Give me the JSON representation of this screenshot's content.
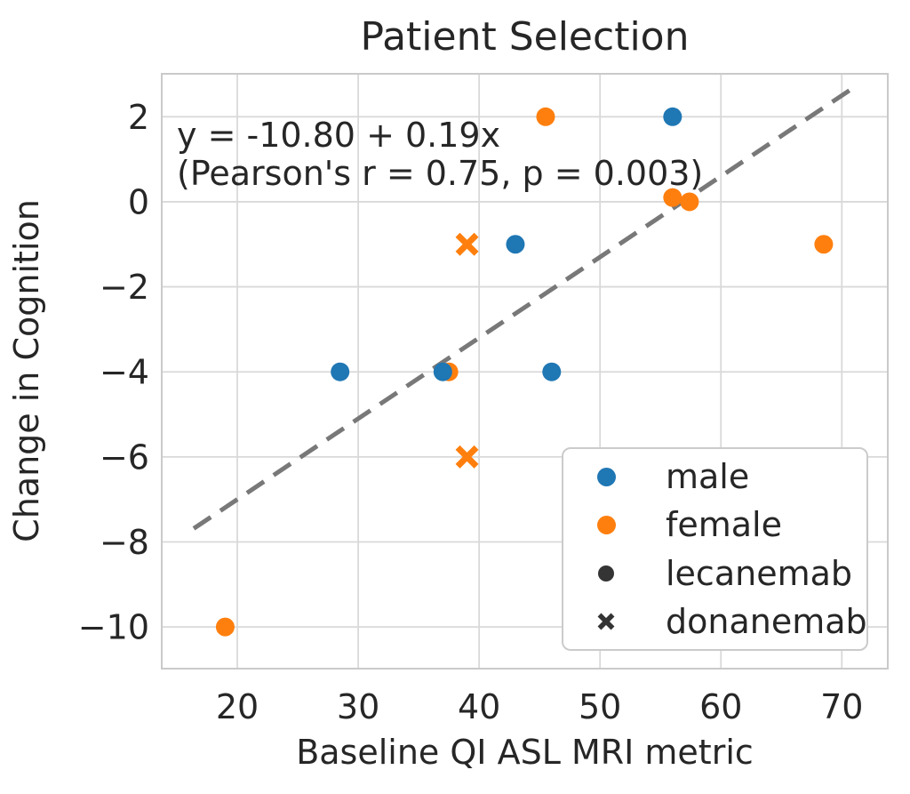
{
  "chart_data": {
    "type": "scatter",
    "title": "Patient Selection",
    "xlabel": "Baseline QI ASL MRI metric",
    "ylabel": "Change in Cognition",
    "xlim": [
      13.75,
      73.8
    ],
    "ylim": [
      -10.98,
      3.01
    ],
    "xticks": [
      20,
      30,
      40,
      50,
      60,
      70
    ],
    "xtick_labels": [
      "20",
      "30",
      "40",
      "50",
      "60",
      "70"
    ],
    "yticks": [
      2,
      0,
      -2,
      -4,
      -6,
      -8,
      -10
    ],
    "ytick_labels": [
      "2",
      "0",
      "−2",
      "−4",
      "−6",
      "−8",
      "−10"
    ],
    "grid": true,
    "annotation": {
      "line1": "y = -10.80 + 0.19x",
      "line2": "(Pearson's r = 0.75, p = 0.003)"
    },
    "regression": {
      "slope": 0.19,
      "intercept": -10.8,
      "pearson_r": 0.75,
      "p_value": 0.003
    },
    "series": [
      {
        "name": "female (lecanemab)",
        "sex": "female",
        "drug": "lecanemab",
        "marker": "circle",
        "color": "#ff7f0e",
        "points": [
          [
            45.5,
            2
          ],
          [
            56,
            0.1
          ],
          [
            57.4,
            0
          ],
          [
            68.5,
            -1
          ],
          [
            37.5,
            -4
          ],
          [
            19,
            -10
          ]
        ]
      },
      {
        "name": "male (lecanemab)",
        "sex": "male",
        "drug": "lecanemab",
        "marker": "circle",
        "color": "#1f77b4",
        "points": [
          [
            56,
            2
          ],
          [
            43,
            -1
          ],
          [
            28.5,
            -4
          ],
          [
            37,
            -4
          ],
          [
            46,
            -4
          ]
        ]
      },
      {
        "name": "female (donanemab)",
        "sex": "female",
        "drug": "donanemab",
        "marker": "x",
        "color": "#ff7f0e",
        "points": [
          [
            39,
            -1
          ],
          [
            39,
            -6
          ]
        ]
      }
    ],
    "trend_line": {
      "slope": 0.19,
      "intercept": -10.8,
      "x_start": 16.4,
      "x_end": 71.0,
      "style": "dashed",
      "color": "#787878"
    },
    "legend": {
      "position": "lower right",
      "entries": [
        {
          "label": "male",
          "marker": "circle",
          "color": "#1f77b4"
        },
        {
          "label": "female",
          "marker": "circle",
          "color": "#ff7f0e"
        },
        {
          "label": "lecanemab",
          "marker": "circle",
          "color": "#343434"
        },
        {
          "label": "donanemab",
          "marker": "x",
          "color": "#343434"
        }
      ]
    },
    "colors": {
      "male": "#1f77b4",
      "female": "#ff7f0e",
      "trend_line": "#787878",
      "grid": "#d9d9d9",
      "spine": "#cacaca",
      "text": "#262626",
      "background": "#ffffff",
      "legend_marker_dark": "#343434"
    }
  }
}
